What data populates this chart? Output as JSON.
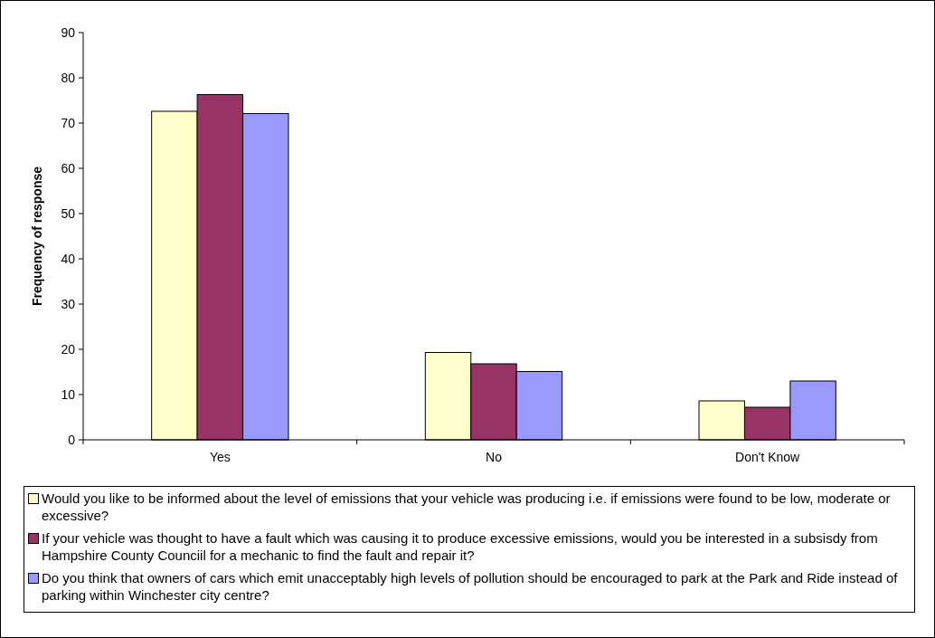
{
  "chart_data": {
    "type": "bar",
    "ylabel": "Frequency of response",
    "categories": [
      "Yes",
      "No",
      "Don't Know"
    ],
    "series": [
      {
        "name": "Would you like to be informed about the level of emissions that your vehicle was producing i.e. if emissions were found to be low, moderate or excessive?",
        "color": "#ffffcc",
        "values": [
          72.6,
          19.3,
          8.6
        ]
      },
      {
        "name": "If your vehicle was thought to have a fault which was causing it to produce excessive emissions, would you be interested in a subsisdy from Hampshire County Counciil for a mechanic to find the fault and repair it?",
        "color": "#993366",
        "values": [
          76.3,
          16.8,
          7.2
        ]
      },
      {
        "name": "Do you think that owners of cars which emit unacceptably high levels of pollution should be encouraged to park at the Park and Ride instead of parking within Winchester city centre?",
        "color": "#9999ff",
        "values": [
          72.1,
          15.1,
          13.0
        ]
      }
    ],
    "ylim": [
      0,
      90
    ],
    "yticks": [
      0,
      10,
      20,
      30,
      40,
      50,
      60,
      70,
      80,
      90
    ],
    "grid": false,
    "legend": "bottom"
  }
}
